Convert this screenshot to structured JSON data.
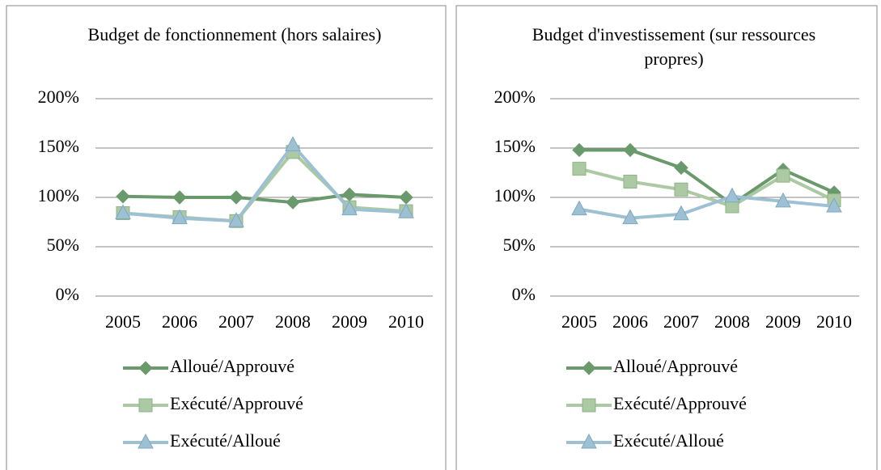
{
  "chart_data": [
    {
      "type": "line",
      "title": "Budget de fonctionnement (hors salaires)",
      "categories": [
        "2005",
        "2006",
        "2007",
        "2008",
        "2009",
        "2010"
      ],
      "series": [
        {
          "name": "Alloué/Approuvé",
          "color": "#6a9a6c",
          "marker": "diamond",
          "values": [
            101,
            100,
            100,
            95,
            103,
            100
          ]
        },
        {
          "name": "Exécuté/Approuvé",
          "color": "#abc9a3",
          "marker": "square",
          "values": [
            84,
            80,
            76,
            146,
            90,
            86
          ]
        },
        {
          "name": "Exécuté/Alloué",
          "color": "#9dc0d2",
          "marker": "triangle",
          "values": [
            84,
            79,
            76,
            153,
            88,
            85
          ]
        }
      ],
      "ylim": [
        0,
        200
      ],
      "yticks": [
        {
          "value": 0,
          "label": "0%"
        },
        {
          "value": 50,
          "label": "50%"
        },
        {
          "value": 100,
          "label": "100%"
        },
        {
          "value": 150,
          "label": "150%"
        },
        {
          "value": 200,
          "label": "200%"
        }
      ],
      "grid": true,
      "legend": "bottom"
    },
    {
      "type": "line",
      "title": "Budget d'investissement (sur ressources propres)",
      "categories": [
        "2005",
        "2006",
        "2007",
        "2008",
        "2009",
        "2010"
      ],
      "series": [
        {
          "name": "Alloué/Approuvé",
          "color": "#6a9a6c",
          "marker": "diamond",
          "values": [
            148,
            148,
            130,
            93,
            128,
            105
          ]
        },
        {
          "name": "Exécuté/Approuvé",
          "color": "#abc9a3",
          "marker": "square",
          "values": [
            129,
            116,
            108,
            91,
            122,
            97
          ]
        },
        {
          "name": "Exécuté/Alloué",
          "color": "#9dc0d2",
          "marker": "triangle",
          "values": [
            88,
            79,
            83,
            101,
            96,
            91
          ]
        }
      ],
      "ylim": [
        0,
        200
      ],
      "yticks": [
        {
          "value": 0,
          "label": "0%"
        },
        {
          "value": 50,
          "label": "50%"
        },
        {
          "value": 100,
          "label": "100%"
        },
        {
          "value": 150,
          "label": "150%"
        },
        {
          "value": 200,
          "label": "200%"
        }
      ],
      "grid": true,
      "legend": "bottom"
    }
  ]
}
